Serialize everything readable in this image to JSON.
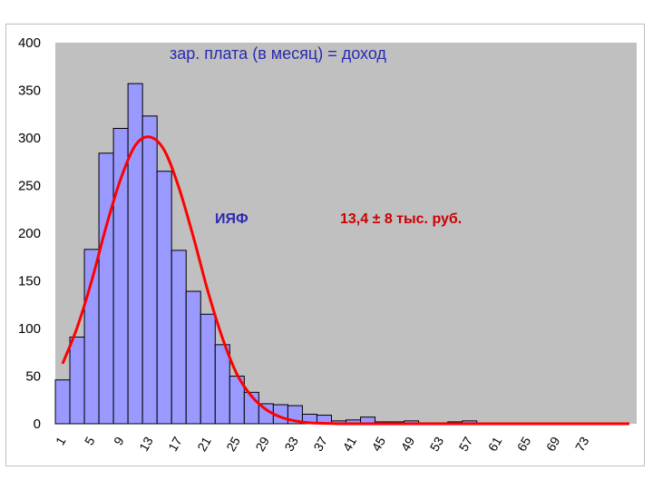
{
  "chart_data": {
    "type": "bar",
    "title": "зар. плата (в месяц) = доход",
    "annotations": [
      {
        "text": "ИЯФ",
        "style": "blue"
      },
      {
        "text": "13,4 ± 8 тыс. руб.",
        "style": "red"
      }
    ],
    "xlabel": "",
    "ylabel": "",
    "ylim": [
      0,
      400
    ],
    "yticks": [
      0,
      50,
      100,
      150,
      200,
      250,
      300,
      350,
      400
    ],
    "xtick_labels": [
      "1",
      "5",
      "9",
      "13",
      "17",
      "21",
      "25",
      "29",
      "33",
      "37",
      "41",
      "45",
      "49",
      "53",
      "57",
      "61",
      "65",
      "69",
      "73"
    ],
    "categories": [
      1,
      3,
      5,
      7,
      9,
      11,
      13,
      15,
      17,
      19,
      21,
      23,
      25,
      27,
      29,
      31,
      33,
      35,
      37,
      39,
      41,
      43,
      45,
      47,
      49,
      51,
      53,
      55,
      57,
      59,
      61,
      63,
      65,
      67,
      69,
      71,
      73,
      75,
      77,
      79
    ],
    "values": [
      46,
      91,
      183,
      284,
      310,
      357,
      323,
      265,
      182,
      139,
      115,
      83,
      50,
      33,
      21,
      20,
      19,
      10,
      9,
      3,
      4,
      7,
      2,
      2,
      3,
      1,
      1,
      2,
      3,
      0,
      0,
      0,
      0,
      0,
      0,
      0,
      0,
      0,
      0,
      0
    ],
    "series": [
      {
        "type": "line",
        "description": "gaussian fit",
        "x": [
          1,
          3,
          5,
          7,
          9,
          11,
          13,
          15,
          17,
          19,
          21,
          23,
          25,
          27,
          29,
          31,
          33,
          35,
          37,
          39,
          41,
          43,
          45,
          47,
          49,
          51,
          53,
          55,
          57,
          59,
          61,
          63,
          65,
          67,
          69,
          71,
          73,
          75,
          77,
          79
        ],
        "values": [
          63,
          101,
          150,
          207,
          257,
          292,
          301,
          287,
          248,
          196,
          139,
          90,
          52,
          29,
          15,
          7,
          3,
          1,
          0.5,
          0,
          0,
          0,
          0,
          0,
          0,
          0,
          0,
          0,
          0,
          0,
          0,
          0,
          0,
          0,
          0,
          0,
          0,
          0,
          0,
          0
        ]
      }
    ],
    "grid": false,
    "colors": {
      "bar_fill": "#9999ff",
      "bar_stroke": "#000000",
      "plot_bg": "#c0c0c0",
      "fit_line": "#ff0000"
    }
  }
}
